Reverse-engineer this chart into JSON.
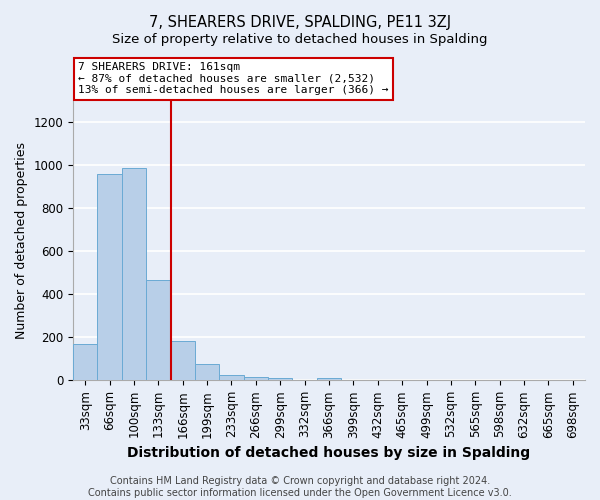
{
  "title": "7, SHEARERS DRIVE, SPALDING, PE11 3ZJ",
  "subtitle": "Size of property relative to detached houses in Spalding",
  "xlabel": "Distribution of detached houses by size in Spalding",
  "ylabel": "Number of detached properties",
  "bar_labels": [
    "33sqm",
    "66sqm",
    "100sqm",
    "133sqm",
    "166sqm",
    "199sqm",
    "233sqm",
    "266sqm",
    "299sqm",
    "332sqm",
    "366sqm",
    "399sqm",
    "432sqm",
    "465sqm",
    "499sqm",
    "532sqm",
    "565sqm",
    "598sqm",
    "632sqm",
    "665sqm",
    "698sqm"
  ],
  "bar_values": [
    170,
    960,
    990,
    465,
    185,
    75,
    25,
    15,
    10,
    0,
    10,
    0,
    0,
    0,
    0,
    0,
    0,
    0,
    0,
    0,
    0
  ],
  "bar_color": "#b8cfe8",
  "bar_edge_color": "#6aaad4",
  "vline_x": 3.5,
  "vline_color": "#cc0000",
  "ylim": [
    0,
    1300
  ],
  "yticks": [
    0,
    200,
    400,
    600,
    800,
    1000,
    1200
  ],
  "annotation_line1": "7 SHEARERS DRIVE: 161sqm",
  "annotation_line2": "← 87% of detached houses are smaller (2,532)",
  "annotation_line3": "13% of semi-detached houses are larger (366) →",
  "annotation_box_color": "#ffffff",
  "annotation_box_edge_color": "#cc0000",
  "footer_text": "Contains HM Land Registry data © Crown copyright and database right 2024.\nContains public sector information licensed under the Open Government Licence v3.0.",
  "background_color": "#e8eef8",
  "grid_color": "#ffffff",
  "title_fontsize": 10.5,
  "subtitle_fontsize": 9.5,
  "xlabel_fontsize": 10,
  "ylabel_fontsize": 9,
  "tick_fontsize": 8.5,
  "footer_fontsize": 7
}
